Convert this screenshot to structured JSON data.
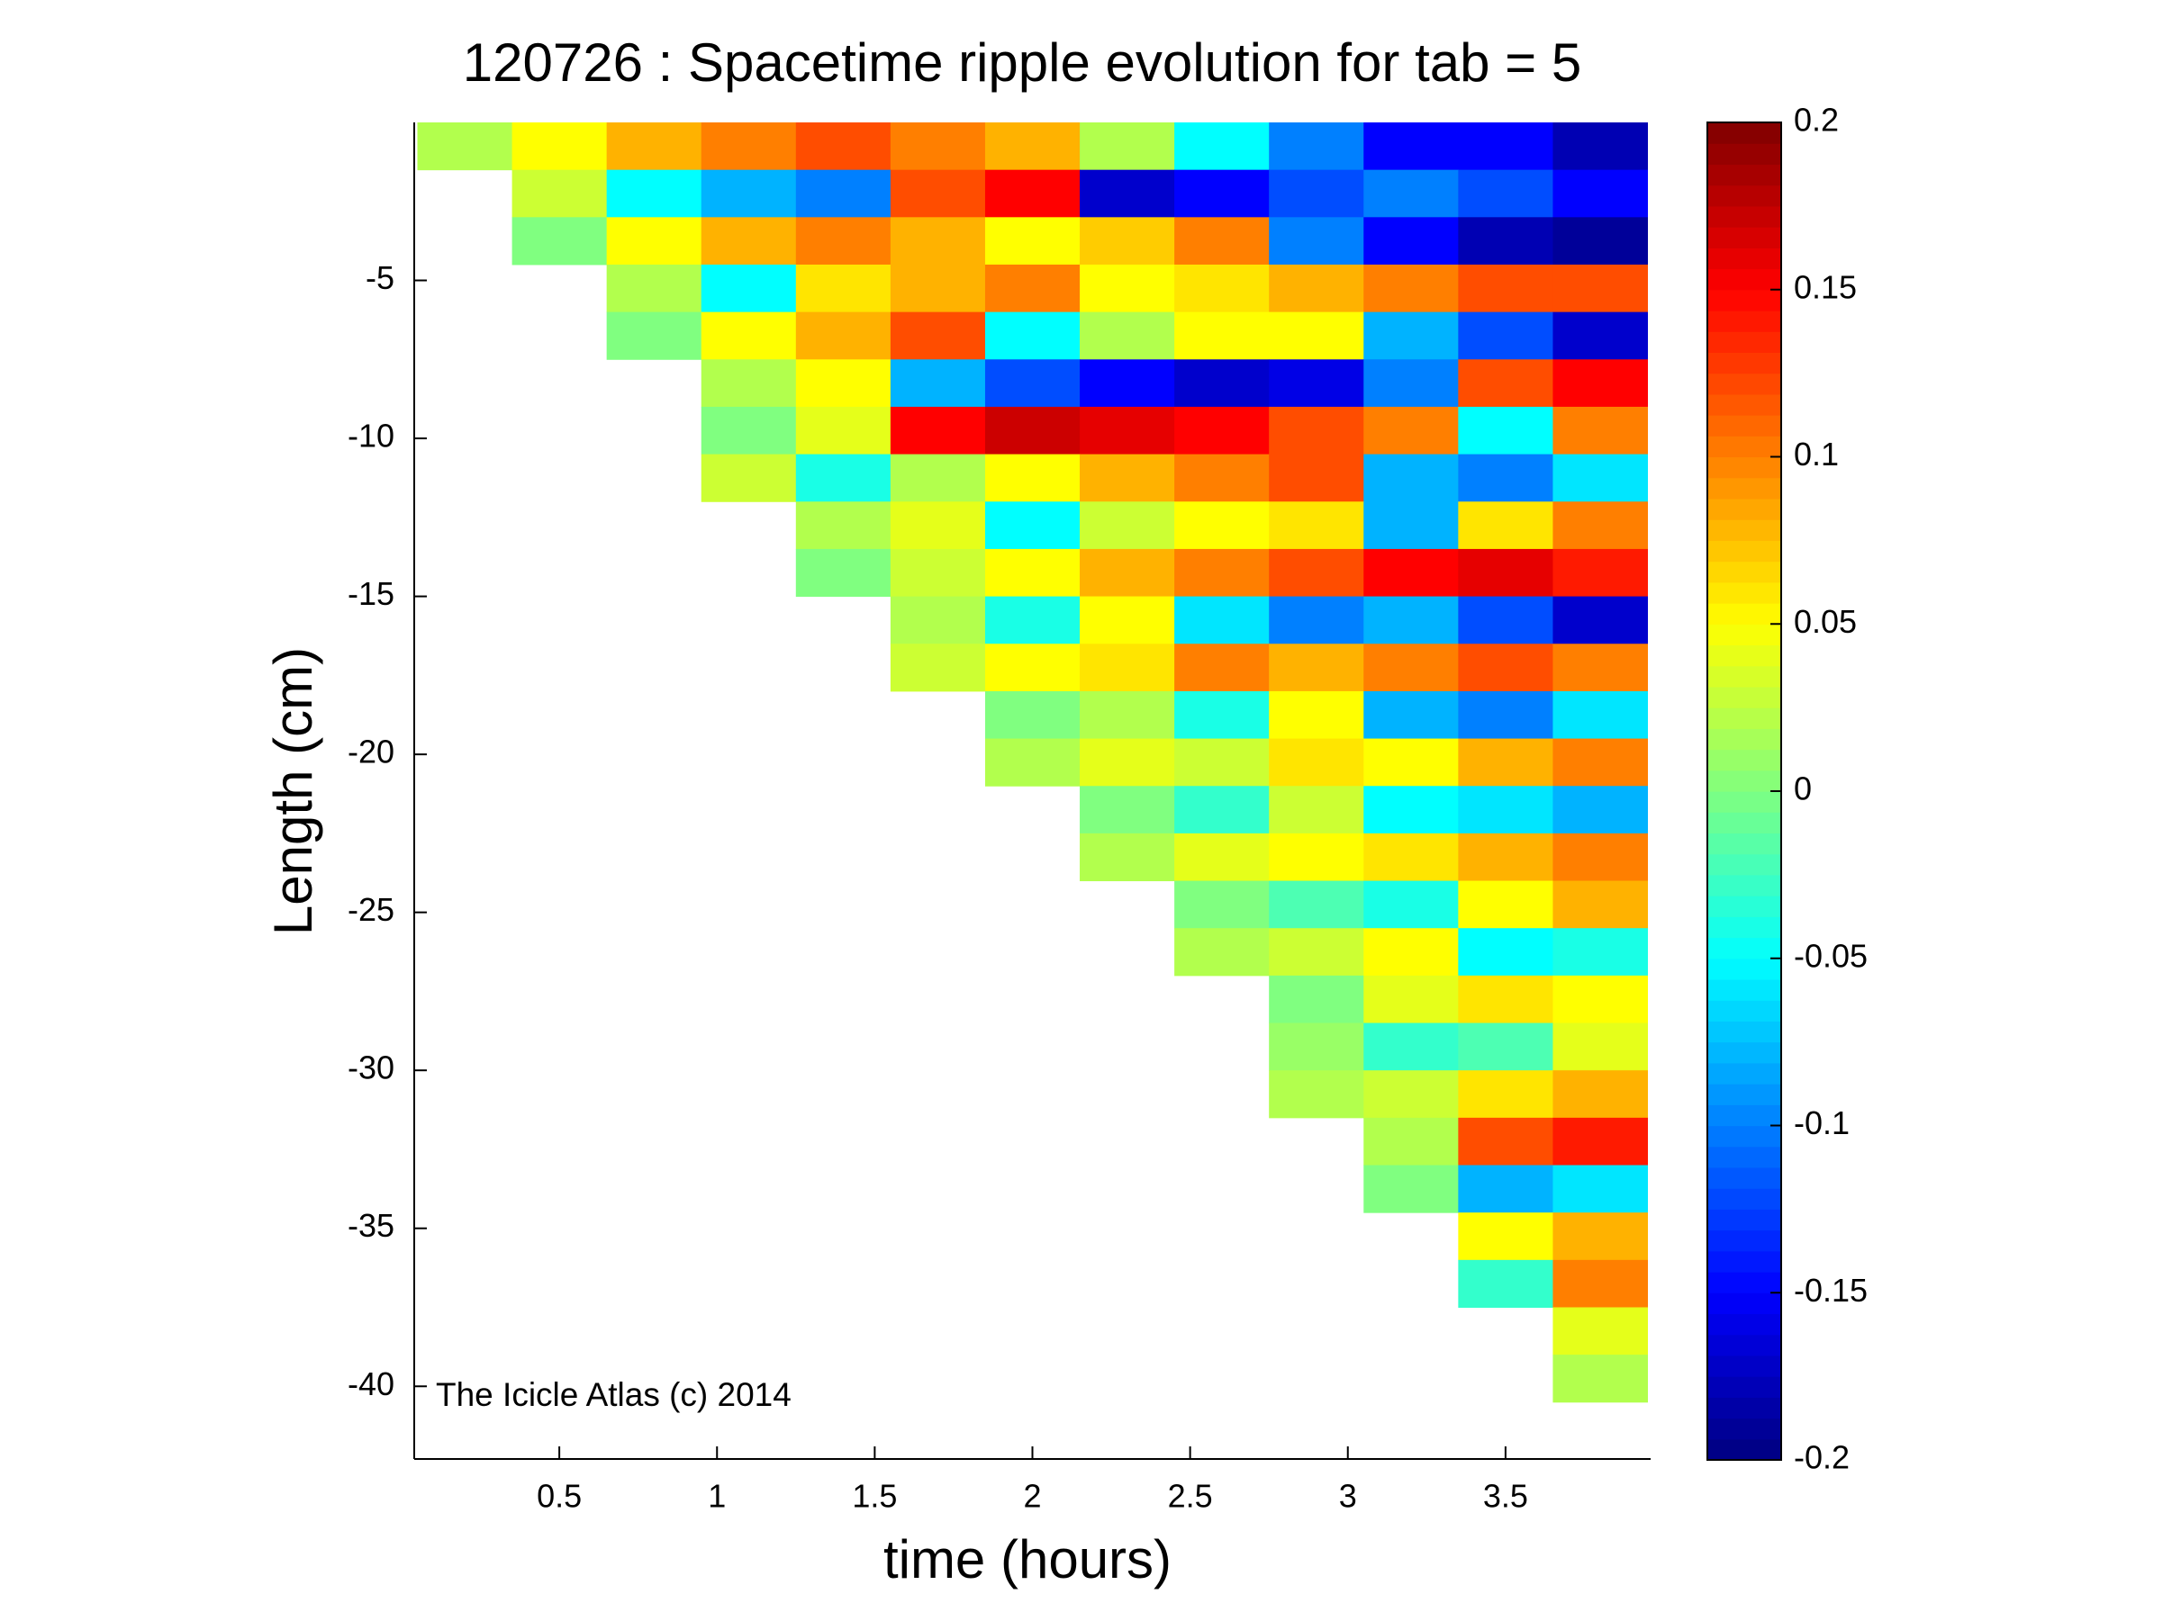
{
  "chart_data": {
    "type": "heatmap",
    "title": "120726 : Spacetime ripple evolution for tab = 5",
    "xlabel": "time (hours)",
    "ylabel": "Length (cm)",
    "annotation": "The Icicle Atlas (c) 2014",
    "colormap": "jet",
    "x": [
      0.2,
      0.5,
      0.8,
      1.1,
      1.4,
      1.7,
      2.0,
      2.3,
      2.6,
      2.9,
      3.2,
      3.5,
      3.8
    ],
    "y": [
      -0.75,
      -2.25,
      -3.75,
      -5.25,
      -6.75,
      -8.25,
      -9.75,
      -11.25,
      -12.75,
      -14.25,
      -15.75,
      -17.25,
      -18.75,
      -20.25,
      -21.75,
      -23.25,
      -24.75,
      -26.25,
      -27.75,
      -29.25,
      -30.75,
      -32.25,
      -33.75,
      -35.25,
      -36.75,
      -38.25,
      -39.75
    ],
    "z": [
      [
        0.02,
        0.05,
        0.08,
        0.1,
        0.12,
        0.1,
        0.08,
        0.02,
        -0.05,
        -0.1,
        -0.15,
        -0.15,
        -0.18
      ],
      [
        null,
        0.03,
        -0.05,
        -0.08,
        -0.1,
        0.12,
        0.15,
        -0.17,
        -0.15,
        -0.12,
        -0.1,
        -0.12,
        -0.15
      ],
      [
        null,
        0.0,
        0.05,
        0.08,
        0.1,
        0.08,
        0.05,
        0.07,
        0.1,
        -0.1,
        -0.15,
        -0.18,
        -0.19
      ],
      [
        null,
        null,
        0.02,
        -0.05,
        0.06,
        0.08,
        0.1,
        0.05,
        0.06,
        0.08,
        0.1,
        0.12,
        0.12
      ],
      [
        null,
        null,
        0.0,
        0.05,
        0.08,
        0.12,
        -0.05,
        0.02,
        0.05,
        0.05,
        -0.08,
        -0.12,
        -0.17
      ],
      [
        null,
        null,
        null,
        0.02,
        0.05,
        -0.08,
        -0.12,
        -0.15,
        -0.17,
        -0.16,
        -0.1,
        0.12,
        0.15
      ],
      [
        null,
        null,
        null,
        0.0,
        0.04,
        0.15,
        0.17,
        0.16,
        0.15,
        0.12,
        0.1,
        -0.05,
        0.1
      ],
      [
        null,
        null,
        null,
        0.03,
        -0.04,
        0.02,
        0.05,
        0.08,
        0.1,
        0.12,
        -0.08,
        -0.1,
        -0.06
      ],
      [
        null,
        null,
        null,
        null,
        0.02,
        0.04,
        -0.05,
        0.03,
        0.05,
        0.06,
        -0.08,
        0.06,
        0.1
      ],
      [
        null,
        null,
        null,
        null,
        0.0,
        0.03,
        0.05,
        0.08,
        0.1,
        0.12,
        0.15,
        0.16,
        0.14
      ],
      [
        null,
        null,
        null,
        null,
        null,
        0.02,
        -0.04,
        0.05,
        -0.06,
        -0.1,
        -0.08,
        -0.12,
        -0.17
      ],
      [
        null,
        null,
        null,
        null,
        null,
        0.03,
        0.05,
        0.06,
        0.1,
        0.08,
        0.1,
        0.12,
        0.1
      ],
      [
        null,
        null,
        null,
        null,
        null,
        null,
        0.0,
        0.02,
        -0.04,
        0.05,
        -0.08,
        -0.1,
        -0.06
      ],
      [
        null,
        null,
        null,
        null,
        null,
        null,
        0.02,
        0.04,
        0.03,
        0.06,
        0.05,
        0.08,
        0.1
      ],
      [
        null,
        null,
        null,
        null,
        null,
        null,
        null,
        0.0,
        -0.03,
        0.03,
        -0.05,
        -0.06,
        -0.08
      ],
      [
        null,
        null,
        null,
        null,
        null,
        null,
        null,
        0.02,
        0.04,
        0.05,
        0.06,
        0.08,
        0.1
      ],
      [
        null,
        null,
        null,
        null,
        null,
        null,
        null,
        null,
        0.0,
        -0.02,
        -0.04,
        0.05,
        0.08
      ],
      [
        null,
        null,
        null,
        null,
        null,
        null,
        null,
        null,
        0.02,
        0.03,
        0.05,
        -0.05,
        -0.04
      ],
      [
        null,
        null,
        null,
        null,
        null,
        null,
        null,
        null,
        null,
        0.0,
        0.04,
        0.06,
        0.05
      ],
      [
        null,
        null,
        null,
        null,
        null,
        null,
        null,
        null,
        null,
        0.01,
        -0.03,
        -0.02,
        0.04
      ],
      [
        null,
        null,
        null,
        null,
        null,
        null,
        null,
        null,
        null,
        0.02,
        0.03,
        0.06,
        0.08
      ],
      [
        null,
        null,
        null,
        null,
        null,
        null,
        null,
        null,
        null,
        null,
        0.02,
        0.12,
        0.14
      ],
      [
        null,
        null,
        null,
        null,
        null,
        null,
        null,
        null,
        null,
        null,
        0.0,
        -0.08,
        -0.06
      ],
      [
        null,
        null,
        null,
        null,
        null,
        null,
        null,
        null,
        null,
        null,
        null,
        0.05,
        0.08
      ],
      [
        null,
        null,
        null,
        null,
        null,
        null,
        null,
        null,
        null,
        null,
        null,
        -0.03,
        0.1
      ],
      [
        null,
        null,
        null,
        null,
        null,
        null,
        null,
        null,
        null,
        null,
        null,
        null,
        0.04
      ],
      [
        null,
        null,
        null,
        null,
        null,
        null,
        null,
        null,
        null,
        null,
        null,
        null,
        0.02
      ]
    ],
    "xlim": [
      0.04,
      3.96
    ],
    "xticks": [
      0.5,
      1,
      1.5,
      2,
      2.5,
      3,
      3.5
    ],
    "ylim": [
      -42.3,
      0
    ],
    "yticks": [
      -40,
      -35,
      -30,
      -25,
      -20,
      -15,
      -10,
      -5
    ],
    "clim": [
      -0.2,
      0.2
    ],
    "cticks": [
      -0.2,
      -0.15,
      -0.1,
      -0.05,
      0,
      0.05,
      0.1,
      0.15,
      0.2
    ]
  }
}
